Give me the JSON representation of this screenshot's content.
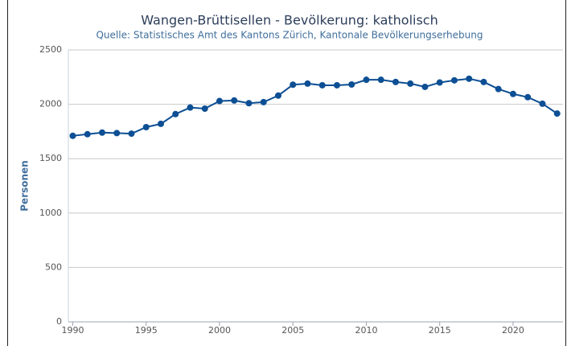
{
  "chart_data": {
    "type": "line",
    "title": "Wangen-Brüttisellen - Bevölkerung: katholisch",
    "subtitle": "Quelle: Statistisches Amt des Kantons Zürich, Kantonale Bevölkerungserhebung",
    "y_label": "Personen",
    "x": [
      1990,
      1991,
      1992,
      1993,
      1994,
      1995,
      1996,
      1997,
      1998,
      1999,
      2000,
      2001,
      2002,
      2003,
      2004,
      2005,
      2006,
      2007,
      2008,
      2009,
      2010,
      2011,
      2012,
      2013,
      2014,
      2015,
      2016,
      2017,
      2018,
      2019,
      2020,
      2021,
      2022,
      2023
    ],
    "series": [
      {
        "name": "katholisch",
        "color": "#0d4f94",
        "values": [
          1710,
          1725,
          1740,
          1735,
          1730,
          1790,
          1820,
          1910,
          1970,
          1960,
          2030,
          2035,
          2010,
          2020,
          2080,
          2180,
          2190,
          2175,
          2175,
          2182,
          2225,
          2225,
          2205,
          2190,
          2160,
          2200,
          2220,
          2235,
          2205,
          2140,
          2095,
          2065,
          2005,
          1915
        ]
      }
    ],
    "xlim": [
      1989.7,
      2023.4
    ],
    "xticks": [
      1990,
      1995,
      2000,
      2005,
      2010,
      2015,
      2020
    ],
    "ylim": [
      0,
      2500
    ],
    "yticks": [
      0,
      500,
      1000,
      1500,
      2000,
      2500
    ],
    "grid": true
  }
}
